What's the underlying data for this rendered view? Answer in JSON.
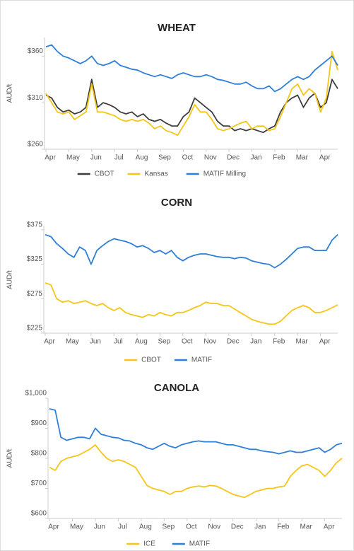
{
  "chart_data": [
    {
      "type": "line",
      "title": "WHEAT",
      "y_label": "AUD/t",
      "categories": [
        "Apr",
        null,
        null,
        null,
        "May",
        null,
        null,
        null,
        "Jun",
        null,
        null,
        null,
        "Jul",
        null,
        null,
        null,
        "Aug",
        null,
        null,
        null,
        "Sep",
        null,
        null,
        null,
        "Oct",
        null,
        null,
        null,
        "Nov",
        null,
        null,
        null,
        "Dec",
        null,
        null,
        null,
        "Jan",
        null,
        null,
        null,
        "Feb",
        null,
        null,
        null,
        "Mar",
        null,
        null,
        null,
        "Apr",
        null,
        null,
        null
      ],
      "ylim": [
        260,
        380
      ],
      "yticks": [
        {
          "value": 260,
          "label": "$260"
        },
        {
          "value": 310,
          "label": "$310"
        },
        {
          "value": 360,
          "label": "$360"
        }
      ],
      "series": [
        {
          "name": "CBOT",
          "color": "#3d3d3d",
          "values": [
            318,
            315,
            305,
            300,
            302,
            298,
            300,
            305,
            335,
            305,
            310,
            308,
            305,
            300,
            298,
            300,
            295,
            298,
            292,
            290,
            292,
            288,
            285,
            285,
            295,
            300,
            315,
            310,
            305,
            300,
            290,
            285,
            285,
            280,
            282,
            280,
            282,
            280,
            278,
            282,
            285,
            300,
            310,
            315,
            318,
            305,
            315,
            320,
            305,
            310,
            335,
            325
          ]
        },
        {
          "name": "Kansas",
          "color": "#f5c518",
          "values": [
            320,
            310,
            300,
            298,
            300,
            292,
            296,
            300,
            330,
            300,
            300,
            298,
            296,
            292,
            290,
            292,
            290,
            292,
            288,
            282,
            285,
            280,
            278,
            275,
            285,
            295,
            308,
            300,
            300,
            292,
            282,
            280,
            282,
            285,
            288,
            290,
            282,
            285,
            285,
            280,
            282,
            295,
            310,
            325,
            330,
            318,
            325,
            320,
            300,
            315,
            365,
            345
          ]
        },
        {
          "name": "MATIF Milling",
          "color": "#2f7fd8",
          "values": [
            370,
            372,
            365,
            360,
            358,
            355,
            352,
            355,
            360,
            352,
            350,
            352,
            355,
            350,
            348,
            346,
            345,
            342,
            340,
            338,
            340,
            338,
            336,
            340,
            342,
            340,
            338,
            338,
            340,
            338,
            335,
            334,
            332,
            330,
            330,
            332,
            328,
            325,
            325,
            328,
            322,
            325,
            330,
            335,
            338,
            335,
            338,
            345,
            350,
            355,
            360,
            350
          ]
        }
      ]
    },
    {
      "type": "line",
      "title": "CORN",
      "y_label": "AUD/t",
      "categories": [
        "Apr",
        null,
        null,
        null,
        "May",
        null,
        null,
        null,
        "Jun",
        null,
        null,
        null,
        "Jul",
        null,
        null,
        null,
        "Aug",
        null,
        null,
        null,
        "Sep",
        null,
        null,
        null,
        "Oct",
        null,
        null,
        null,
        "Nov",
        null,
        null,
        null,
        "Dec",
        null,
        null,
        null,
        "Jan",
        null,
        null,
        null,
        "Feb",
        null,
        null,
        null,
        "Mar",
        null,
        null,
        null,
        "Apr",
        null,
        null,
        null
      ],
      "ylim": [
        225,
        380
      ],
      "yticks": [
        {
          "value": 225,
          "label": "$225"
        },
        {
          "value": 275,
          "label": "$275"
        },
        {
          "value": 325,
          "label": "$325"
        },
        {
          "value": 375,
          "label": "$375"
        }
      ],
      "series": [
        {
          "name": "CBOT",
          "color": "#f5c518",
          "values": [
            298,
            295,
            275,
            270,
            272,
            268,
            270,
            272,
            268,
            265,
            268,
            262,
            258,
            262,
            255,
            252,
            250,
            248,
            252,
            250,
            255,
            252,
            250,
            255,
            255,
            258,
            262,
            265,
            270,
            268,
            268,
            265,
            265,
            260,
            255,
            250,
            245,
            242,
            240,
            238,
            238,
            242,
            250,
            258,
            262,
            265,
            262,
            255,
            255,
            258,
            262,
            266
          ]
        },
        {
          "name": "MATIF",
          "color": "#2f7fd8",
          "values": [
            368,
            365,
            355,
            348,
            340,
            335,
            350,
            345,
            325,
            345,
            352,
            358,
            362,
            360,
            358,
            355,
            350,
            352,
            348,
            342,
            345,
            340,
            345,
            335,
            330,
            335,
            338,
            340,
            340,
            338,
            336,
            335,
            335,
            333,
            335,
            334,
            330,
            328,
            326,
            325,
            320,
            325,
            332,
            340,
            348,
            350,
            350,
            345,
            345,
            345,
            360,
            368
          ]
        }
      ]
    },
    {
      "type": "line",
      "title": "CANOLA",
      "y_label": "AUD/t",
      "categories": [
        "Apr",
        null,
        null,
        null,
        "May",
        null,
        null,
        null,
        "Jun",
        null,
        null,
        null,
        "Jul",
        null,
        null,
        null,
        "Aug",
        null,
        null,
        null,
        "Sep",
        null,
        null,
        null,
        "Oct",
        null,
        null,
        null,
        "Nov",
        null,
        null,
        null,
        "Dec",
        null,
        null,
        null,
        "Jan",
        null,
        null,
        null,
        "Feb",
        null,
        null,
        null,
        "Mar",
        null,
        null,
        null,
        "Apr",
        null,
        null,
        null
      ],
      "ylim": [
        600,
        1000
      ],
      "yticks": [
        {
          "value": 600,
          "label": "$600"
        },
        {
          "value": 700,
          "label": "$700"
        },
        {
          "value": 800,
          "label": "$800"
        },
        {
          "value": 900,
          "label": "$900"
        },
        {
          "value": 1000,
          "label": "$1,000"
        }
      ],
      "series": [
        {
          "name": "ICE",
          "color": "#f5c518",
          "values": [
            770,
            760,
            790,
            800,
            805,
            810,
            820,
            830,
            845,
            820,
            800,
            790,
            795,
            790,
            780,
            770,
            740,
            710,
            700,
            695,
            690,
            680,
            690,
            690,
            700,
            705,
            708,
            705,
            710,
            708,
            700,
            690,
            680,
            675,
            670,
            680,
            690,
            695,
            700,
            700,
            705,
            708,
            740,
            760,
            775,
            780,
            770,
            760,
            740,
            760,
            785,
            800
          ]
        },
        {
          "name": "MATIF",
          "color": "#2f7fd8",
          "values": [
            965,
            960,
            870,
            860,
            865,
            870,
            870,
            865,
            900,
            880,
            875,
            870,
            868,
            860,
            858,
            850,
            845,
            835,
            830,
            840,
            850,
            840,
            835,
            845,
            850,
            855,
            858,
            855,
            855,
            855,
            850,
            845,
            845,
            840,
            835,
            830,
            830,
            825,
            822,
            820,
            815,
            820,
            825,
            820,
            820,
            825,
            830,
            835,
            820,
            830,
            845,
            850
          ]
        }
      ]
    }
  ]
}
